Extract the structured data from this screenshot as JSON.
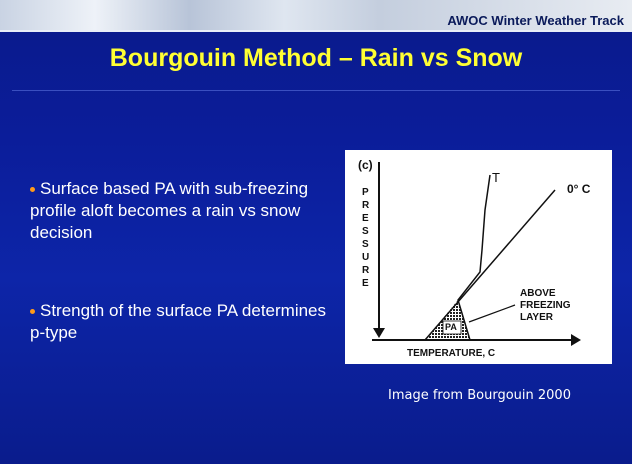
{
  "header": {
    "track": "AWOC Winter Weather Track"
  },
  "title": "Bourgouin Method – Rain vs Snow",
  "bullets": [
    "Surface based PA with sub-freezing profile aloft becomes a rain vs snow decision",
    "Strength of the surface PA determines p-type"
  ],
  "figure": {
    "panel": "(c)",
    "y_axis": "PRESSURE",
    "x_axis": "TEMPERATURE, C",
    "curve_label": "T",
    "isotherm_label": "0° C",
    "area_label": "PA",
    "annotation": [
      "ABOVE",
      "FREEZING",
      "LAYER"
    ]
  },
  "caption": "Image from Bourgouin 2000"
}
